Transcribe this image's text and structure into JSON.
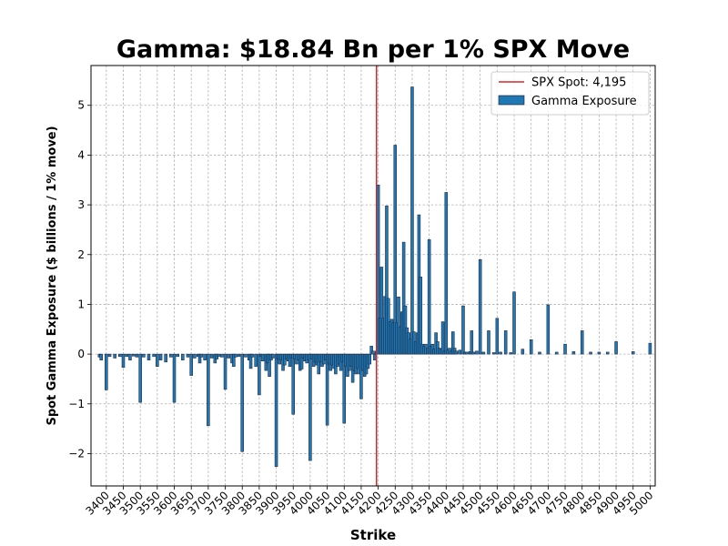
{
  "chart_data": {
    "type": "bar",
    "title": "Gamma: $18.84 Bn per 1% SPX Move",
    "xlabel": "Strike",
    "ylabel": "Spot Gamma Exposure ($ billions / 1% move)",
    "xlim": [
      3355,
      5015
    ],
    "ylim": [
      -2.65,
      5.8
    ],
    "x_ticks": [
      3400,
      3450,
      3500,
      3550,
      3600,
      3650,
      3700,
      3750,
      3800,
      3850,
      3900,
      3950,
      4000,
      4050,
      4100,
      4150,
      4200,
      4250,
      4300,
      4350,
      4400,
      4450,
      4500,
      4550,
      4600,
      4650,
      4700,
      4750,
      4800,
      4850,
      4900,
      4950,
      5000
    ],
    "y_ticks": [
      -2,
      -1,
      0,
      1,
      2,
      3,
      4,
      5
    ],
    "grid": true,
    "legend_position": "top-right",
    "spot": {
      "label": "SPX Spot: 4,195",
      "value": 4195,
      "color": "#d62728"
    },
    "series": [
      {
        "name": "Gamma Exposure",
        "color": "#1f77b4",
        "edge_color": "#1a1a2e",
        "points": [
          [
            3380,
            -0.06
          ],
          [
            3385,
            -0.12
          ],
          [
            3400,
            -0.72
          ],
          [
            3410,
            -0.05
          ],
          [
            3425,
            -0.08
          ],
          [
            3440,
            -0.05
          ],
          [
            3450,
            -0.27
          ],
          [
            3460,
            -0.05
          ],
          [
            3470,
            -0.12
          ],
          [
            3480,
            -0.04
          ],
          [
            3490,
            -0.06
          ],
          [
            3500,
            -0.97
          ],
          [
            3510,
            -0.06
          ],
          [
            3525,
            -0.12
          ],
          [
            3540,
            -0.05
          ],
          [
            3550,
            -0.25
          ],
          [
            3560,
            -0.12
          ],
          [
            3575,
            -0.16
          ],
          [
            3590,
            -0.06
          ],
          [
            3600,
            -0.97
          ],
          [
            3610,
            -0.05
          ],
          [
            3625,
            -0.12
          ],
          [
            3640,
            -0.06
          ],
          [
            3650,
            -0.43
          ],
          [
            3660,
            -0.08
          ],
          [
            3670,
            -0.05
          ],
          [
            3675,
            -0.18
          ],
          [
            3680,
            -0.06
          ],
          [
            3690,
            -0.12
          ],
          [
            3700,
            -1.44
          ],
          [
            3710,
            -0.08
          ],
          [
            3720,
            -0.18
          ],
          [
            3725,
            -0.1
          ],
          [
            3730,
            -0.05
          ],
          [
            3740,
            -0.06
          ],
          [
            3750,
            -0.71
          ],
          [
            3760,
            -0.08
          ],
          [
            3770,
            -0.18
          ],
          [
            3775,
            -0.25
          ],
          [
            3780,
            -0.06
          ],
          [
            3790,
            -0.05
          ],
          [
            3800,
            -1.96
          ],
          [
            3810,
            -0.06
          ],
          [
            3820,
            -0.12
          ],
          [
            3825,
            -0.29
          ],
          [
            3830,
            -0.06
          ],
          [
            3840,
            -0.25
          ],
          [
            3850,
            -0.82
          ],
          [
            3855,
            -0.05
          ],
          [
            3860,
            -0.14
          ],
          [
            3870,
            -0.33
          ],
          [
            3875,
            -0.18
          ],
          [
            3880,
            -0.45
          ],
          [
            3885,
            -0.12
          ],
          [
            3890,
            -0.08
          ],
          [
            3900,
            -2.26
          ],
          [
            3905,
            -0.1
          ],
          [
            3910,
            -0.2
          ],
          [
            3915,
            -0.12
          ],
          [
            3920,
            -0.33
          ],
          [
            3925,
            -0.22
          ],
          [
            3930,
            -0.1
          ],
          [
            3935,
            -0.14
          ],
          [
            3940,
            -0.25
          ],
          [
            3945,
            -0.08
          ],
          [
            3950,
            -1.21
          ],
          [
            3955,
            -0.1
          ],
          [
            3960,
            -0.2
          ],
          [
            3965,
            -0.12
          ],
          [
            3970,
            -0.33
          ],
          [
            3975,
            -0.3
          ],
          [
            3980,
            -0.08
          ],
          [
            3985,
            -0.14
          ],
          [
            3990,
            -0.18
          ],
          [
            3995,
            -0.12
          ],
          [
            4000,
            -2.14
          ],
          [
            4005,
            -0.1
          ],
          [
            4010,
            -0.25
          ],
          [
            4015,
            -0.16
          ],
          [
            4020,
            -0.22
          ],
          [
            4025,
            -0.4
          ],
          [
            4030,
            -0.16
          ],
          [
            4035,
            -0.25
          ],
          [
            4040,
            -0.2
          ],
          [
            4045,
            -0.12
          ],
          [
            4050,
            -1.43
          ],
          [
            4055,
            -0.2
          ],
          [
            4060,
            -0.33
          ],
          [
            4065,
            -0.22
          ],
          [
            4070,
            -0.29
          ],
          [
            4075,
            -0.4
          ],
          [
            4080,
            -0.25
          ],
          [
            4085,
            -0.2
          ],
          [
            4090,
            -0.33
          ],
          [
            4095,
            -0.16
          ],
          [
            4100,
            -1.39
          ],
          [
            4105,
            -0.25
          ],
          [
            4110,
            -0.45
          ],
          [
            4115,
            -0.33
          ],
          [
            4120,
            -0.25
          ],
          [
            4125,
            -0.57
          ],
          [
            4130,
            -0.33
          ],
          [
            4135,
            -0.4
          ],
          [
            4140,
            -0.29
          ],
          [
            4145,
            -0.4
          ],
          [
            4150,
            -0.9
          ],
          [
            4155,
            -0.33
          ],
          [
            4160,
            -0.45
          ],
          [
            4165,
            -0.4
          ],
          [
            4170,
            -0.29
          ],
          [
            4175,
            -0.2
          ],
          [
            4180,
            0.16
          ],
          [
            4185,
            0.06
          ],
          [
            4190,
            -0.12
          ],
          [
            4195,
            0.06
          ],
          [
            4200,
            3.4
          ],
          [
            4205,
            0.72
          ],
          [
            4210,
            1.75
          ],
          [
            4215,
            0.72
          ],
          [
            4220,
            1.16
          ],
          [
            4225,
            2.98
          ],
          [
            4230,
            1.12
          ],
          [
            4235,
            0.65
          ],
          [
            4240,
            0.7
          ],
          [
            4245,
            0.63
          ],
          [
            4250,
            4.2
          ],
          [
            4255,
            0.63
          ],
          [
            4260,
            1.15
          ],
          [
            4265,
            0.55
          ],
          [
            4270,
            0.85
          ],
          [
            4275,
            2.25
          ],
          [
            4280,
            0.97
          ],
          [
            4285,
            0.53
          ],
          [
            4290,
            0.43
          ],
          [
            4295,
            0.3
          ],
          [
            4300,
            5.37
          ],
          [
            4305,
            0.45
          ],
          [
            4310,
            0.25
          ],
          [
            4315,
            0.43
          ],
          [
            4320,
            2.8
          ],
          [
            4325,
            1.55
          ],
          [
            4330,
            0.2
          ],
          [
            4335,
            0.16
          ],
          [
            4340,
            0.2
          ],
          [
            4345,
            0.12
          ],
          [
            4350,
            2.3
          ],
          [
            4355,
            0.16
          ],
          [
            4360,
            0.2
          ],
          [
            4365,
            0.1
          ],
          [
            4370,
            0.43
          ],
          [
            4375,
            0.25
          ],
          [
            4380,
            0.12
          ],
          [
            4385,
            0.1
          ],
          [
            4390,
            0.65
          ],
          [
            4395,
            0.06
          ],
          [
            4400,
            3.25
          ],
          [
            4405,
            0.08
          ],
          [
            4410,
            0.12
          ],
          [
            4415,
            0.06
          ],
          [
            4420,
            0.45
          ],
          [
            4425,
            0.12
          ],
          [
            4430,
            0.06
          ],
          [
            4440,
            0.08
          ],
          [
            4450,
            0.97
          ],
          [
            4455,
            0.04
          ],
          [
            4460,
            0.04
          ],
          [
            4470,
            0.05
          ],
          [
            4475,
            0.47
          ],
          [
            4480,
            0.04
          ],
          [
            4490,
            0.06
          ],
          [
            4500,
            1.9
          ],
          [
            4510,
            0.04
          ],
          [
            4525,
            0.47
          ],
          [
            4540,
            0.03
          ],
          [
            4550,
            0.72
          ],
          [
            4560,
            0.04
          ],
          [
            4575,
            0.47
          ],
          [
            4590,
            0.03
          ],
          [
            4600,
            1.25
          ],
          [
            4625,
            0.1
          ],
          [
            4650,
            0.29
          ],
          [
            4675,
            0.04
          ],
          [
            4700,
            0.99
          ],
          [
            4725,
            0.04
          ],
          [
            4750,
            0.2
          ],
          [
            4775,
            0.05
          ],
          [
            4800,
            0.47
          ],
          [
            4825,
            0.04
          ],
          [
            4850,
            0.04
          ],
          [
            4875,
            0.04
          ],
          [
            4900,
            0.25
          ],
          [
            4950,
            0.05
          ],
          [
            5000,
            0.22
          ]
        ]
      }
    ]
  }
}
